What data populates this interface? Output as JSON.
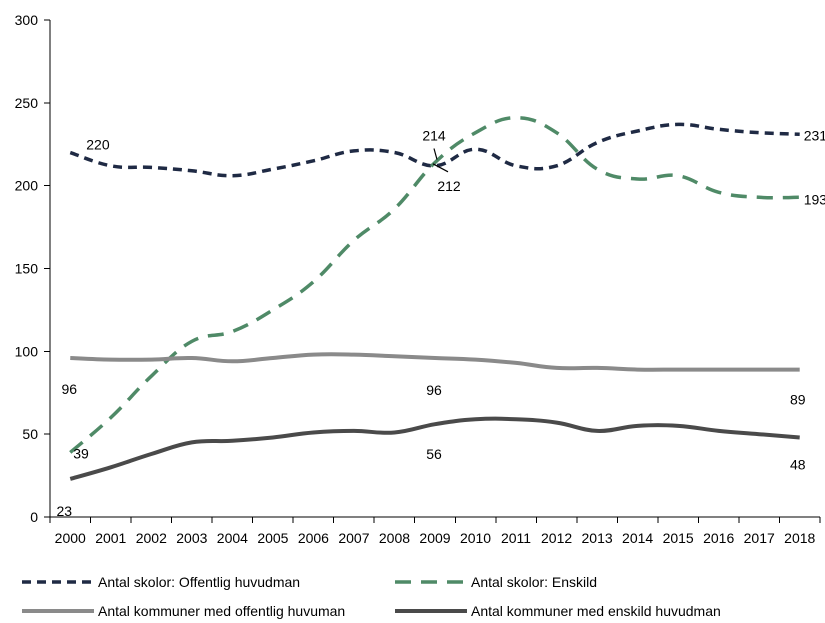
{
  "chart_data": {
    "type": "line",
    "title": "",
    "xlabel": "",
    "ylabel": "",
    "ylim": [
      0,
      300
    ],
    "yticks": [
      0,
      50,
      100,
      150,
      200,
      250,
      300
    ],
    "grid": false,
    "legend_position": "bottom",
    "categories": [
      "2000",
      "2001",
      "2002",
      "2003",
      "2004",
      "2005",
      "2006",
      "2007",
      "2008",
      "2009",
      "2010",
      "2011",
      "2012",
      "2013",
      "2014",
      "2015",
      "2016",
      "2017",
      "2018"
    ],
    "series": [
      {
        "name": "Antal skolor: Offentlig huvudman",
        "color": "#1f2a44",
        "style": "dashed",
        "values": [
          220,
          212,
          211,
          209,
          206,
          210,
          215,
          221,
          220,
          212,
          222,
          212,
          212,
          226,
          233,
          237,
          234,
          232,
          231
        ]
      },
      {
        "name": "Antal skolor: Enskild",
        "color": "#4f8a67",
        "style": "dashed-long",
        "values": [
          39,
          60,
          85,
          106,
          112,
          125,
          142,
          167,
          186,
          214,
          232,
          241,
          232,
          210,
          204,
          206,
          196,
          193,
          193
        ]
      },
      {
        "name": "Antal kommuner med offentlig huvuman",
        "color": "#8a8a8a",
        "style": "solid",
        "values": [
          96,
          95,
          95,
          96,
          94,
          96,
          98,
          98,
          97,
          96,
          95,
          93,
          90,
          90,
          89,
          89,
          89,
          89,
          89
        ]
      },
      {
        "name": "Antal kommuner med enskild huvudman",
        "color": "#4a4a4a",
        "style": "solid",
        "values": [
          23,
          30,
          38,
          45,
          46,
          48,
          51,
          52,
          51,
          56,
          59,
          59,
          57,
          52,
          55,
          55,
          52,
          50,
          48
        ]
      }
    ],
    "annotations": [
      {
        "text": "220",
        "series": 0,
        "index": 0
      },
      {
        "text": "214",
        "series": 1,
        "index": 9
      },
      {
        "text": "212",
        "series": 0,
        "index": 9
      },
      {
        "text": "231",
        "series": 0,
        "index": 18
      },
      {
        "text": "193",
        "series": 1,
        "index": 18
      },
      {
        "text": "96",
        "series": 2,
        "index": 0
      },
      {
        "text": "96",
        "series": 2,
        "index": 9
      },
      {
        "text": "89",
        "series": 2,
        "index": 18
      },
      {
        "text": "39",
        "series": 1,
        "index": 0
      },
      {
        "text": "56",
        "series": 3,
        "index": 9
      },
      {
        "text": "48",
        "series": 3,
        "index": 18
      },
      {
        "text": "23",
        "series": 3,
        "index": 0
      }
    ]
  }
}
